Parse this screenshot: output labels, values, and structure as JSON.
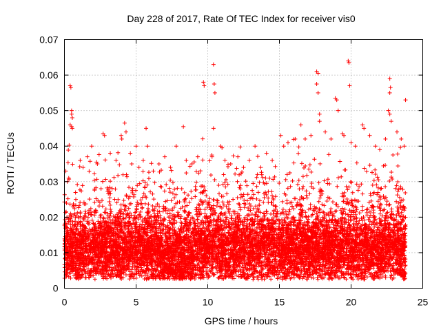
{
  "chart_data": {
    "type": "scatter",
    "title": "Day 228 of 2017, Rate Of TEC Index for receiver vis0",
    "xlabel": "GPS time / hours",
    "ylabel": "ROTI / TECUs",
    "xlim": [
      0,
      25
    ],
    "ylim": [
      0,
      0.07
    ],
    "xticks": [
      0,
      5,
      10,
      15,
      20,
      25
    ],
    "xtick_labels": [
      "0",
      "5",
      "10",
      "15",
      "20",
      "25"
    ],
    "yticks": [
      0,
      0.01,
      0.02,
      0.03,
      0.04,
      0.05,
      0.06,
      0.07
    ],
    "ytick_labels": [
      "0",
      "0.01",
      "0.02",
      "0.03",
      "0.04",
      "0.05",
      "0.06",
      "0.07"
    ],
    "grid": true,
    "marker": "+",
    "color": "#ff0000",
    "data_x_range": [
      0,
      23.8
    ],
    "points": [
      [
        0.4,
        0.057
      ],
      [
        0.45,
        0.0565
      ],
      [
        0.5,
        0.05
      ],
      [
        0.5,
        0.049
      ],
      [
        0.55,
        0.048
      ],
      [
        0.4,
        0.046
      ],
      [
        0.5,
        0.0455
      ],
      [
        0.55,
        0.045
      ],
      [
        0.1,
        0.033
      ],
      [
        0.2,
        0.03
      ],
      [
        0.3,
        0.031
      ],
      [
        1.1,
        0.036
      ],
      [
        1.3,
        0.034
      ],
      [
        1.6,
        0.037
      ],
      [
        1.9,
        0.04
      ],
      [
        2.3,
        0.035
      ],
      [
        2.7,
        0.0435
      ],
      [
        2.8,
        0.043
      ],
      [
        3.2,
        0.038
      ],
      [
        3.6,
        0.036
      ],
      [
        4.0,
        0.042
      ],
      [
        4.2,
        0.0465
      ],
      [
        4.3,
        0.044
      ],
      [
        4.6,
        0.038
      ],
      [
        5.0,
        0.04
      ],
      [
        5.2,
        0.034
      ],
      [
        5.5,
        0.036
      ],
      [
        5.7,
        0.045
      ],
      [
        5.8,
        0.04
      ],
      [
        6.2,
        0.033
      ],
      [
        6.6,
        0.035
      ],
      [
        7.0,
        0.037
      ],
      [
        7.4,
        0.034
      ],
      [
        7.8,
        0.04
      ],
      [
        8.3,
        0.0455
      ],
      [
        8.5,
        0.036
      ],
      [
        8.9,
        0.035
      ],
      [
        9.3,
        0.037
      ],
      [
        9.7,
        0.058
      ],
      [
        9.75,
        0.057
      ],
      [
        10.4,
        0.063
      ],
      [
        10.45,
        0.0575
      ],
      [
        10.5,
        0.055
      ],
      [
        10.4,
        0.045
      ],
      [
        10.3,
        0.037
      ],
      [
        10.9,
        0.04
      ],
      [
        11.2,
        0.036
      ],
      [
        11.6,
        0.035
      ],
      [
        12.1,
        0.037
      ],
      [
        12.5,
        0.034
      ],
      [
        12.9,
        0.036
      ],
      [
        13.3,
        0.04
      ],
      [
        13.7,
        0.034
      ],
      [
        14.1,
        0.038
      ],
      [
        14.5,
        0.036
      ],
      [
        15.1,
        0.043
      ],
      [
        15.3,
        0.04
      ],
      [
        15.6,
        0.041
      ],
      [
        16.1,
        0.042
      ],
      [
        16.5,
        0.046
      ],
      [
        16.8,
        0.042
      ],
      [
        17.2,
        0.043
      ],
      [
        17.6,
        0.061
      ],
      [
        17.7,
        0.0605
      ],
      [
        17.6,
        0.0575
      ],
      [
        17.7,
        0.055
      ],
      [
        17.8,
        0.049
      ],
      [
        17.8,
        0.047
      ],
      [
        18.2,
        0.044
      ],
      [
        18.6,
        0.042
      ],
      [
        18.9,
        0.0535
      ],
      [
        19.0,
        0.053
      ],
      [
        19.1,
        0.05
      ],
      [
        19.4,
        0.0435
      ],
      [
        19.5,
        0.043
      ],
      [
        19.8,
        0.064
      ],
      [
        19.85,
        0.0635
      ],
      [
        19.9,
        0.057
      ],
      [
        20.0,
        0.041
      ],
      [
        20.3,
        0.04
      ],
      [
        20.8,
        0.046
      ],
      [
        20.9,
        0.045
      ],
      [
        21.3,
        0.043
      ],
      [
        21.7,
        0.04
      ],
      [
        22.0,
        0.039
      ],
      [
        22.4,
        0.042
      ],
      [
        22.7,
        0.059
      ],
      [
        22.75,
        0.0565
      ],
      [
        22.7,
        0.055
      ],
      [
        22.6,
        0.05
      ],
      [
        22.7,
        0.049
      ],
      [
        22.8,
        0.047
      ],
      [
        23.2,
        0.044
      ],
      [
        23.5,
        0.042
      ],
      [
        23.8,
        0.053
      ],
      [
        23.7,
        0.04
      ]
    ]
  }
}
